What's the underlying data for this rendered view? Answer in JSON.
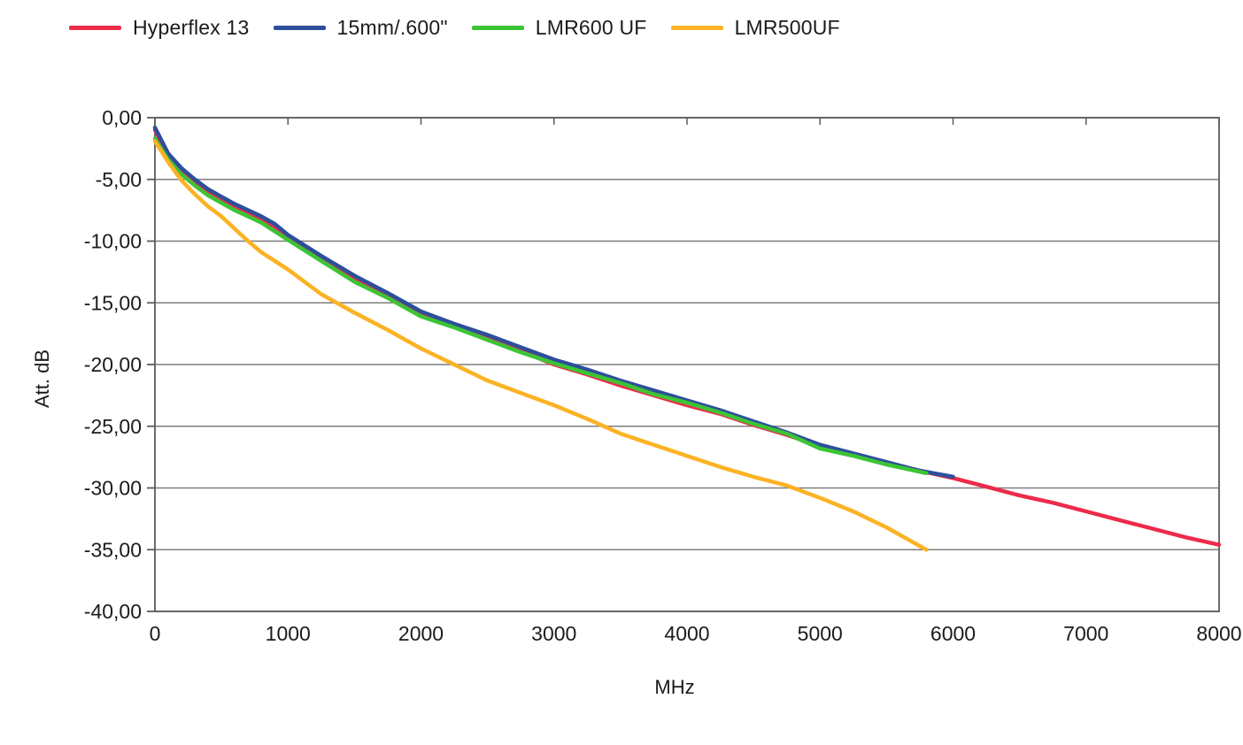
{
  "page": {
    "background": "#ffffff"
  },
  "colors": {
    "text": "#1b1b1b",
    "grid": "#7d7d7d",
    "axis": "#5c5c5c"
  },
  "legend": {
    "items": [
      {
        "label": "Hyperflex 13",
        "color": "#ec2b4b"
      },
      {
        "label": "15mm/.600\"",
        "color": "#2d4f9b"
      },
      {
        "label": "LMR600 UF",
        "color": "#3cc435"
      },
      {
        "label": "LMR500UF",
        "color": "#fbb224"
      }
    ]
  },
  "chart_data": {
    "type": "line",
    "title": "",
    "xlabel": "MHz",
    "ylabel": "Att. dB",
    "xlim": [
      0,
      8000
    ],
    "ylim": [
      -40,
      0
    ],
    "grid": "horizontal-major",
    "legend_position": "top-left",
    "x_ticks": [
      {
        "v": 0,
        "label": "0"
      },
      {
        "v": 1000,
        "label": "1000"
      },
      {
        "v": 2000,
        "label": "2000"
      },
      {
        "v": 3000,
        "label": "3000"
      },
      {
        "v": 4000,
        "label": "4000"
      },
      {
        "v": 5000,
        "label": "5000"
      },
      {
        "v": 6000,
        "label": "6000"
      },
      {
        "v": 7000,
        "label": "7000"
      },
      {
        "v": 8000,
        "label": "8000"
      }
    ],
    "y_ticks": [
      {
        "v": 0,
        "label": "0,00"
      },
      {
        "v": -5,
        "label": "-5,00"
      },
      {
        "v": -10,
        "label": "-10,00"
      },
      {
        "v": -15,
        "label": "-15,00"
      },
      {
        "v": -20,
        "label": "-20,00"
      },
      {
        "v": -25,
        "label": "-25,00"
      },
      {
        "v": -30,
        "label": "-30,00"
      },
      {
        "v": -35,
        "label": "-35,00"
      },
      {
        "v": -40,
        "label": "-40,00"
      }
    ],
    "series": [
      {
        "name": "Hyperflex 13",
        "color": "#ec2b4b",
        "x": [
          0,
          100,
          200,
          300,
          400,
          500,
          600,
          700,
          800,
          900,
          1000,
          1250,
          1500,
          1750,
          2000,
          2250,
          2500,
          2750,
          3000,
          3250,
          3500,
          3750,
          4000,
          4250,
          4500,
          4750,
          5000,
          5250,
          5500,
          5750,
          6000,
          6250,
          6500,
          6750,
          7000,
          7250,
          7500,
          7750,
          8000
        ],
        "y": [
          -1.0,
          -3.1,
          -4.3,
          -5.2,
          -6.0,
          -6.6,
          -7.2,
          -7.7,
          -8.3,
          -8.9,
          -9.7,
          -11.4,
          -13.0,
          -14.4,
          -15.9,
          -16.9,
          -17.9,
          -18.9,
          -20.0,
          -20.8,
          -21.7,
          -22.5,
          -23.3,
          -24.0,
          -24.9,
          -25.7,
          -26.6,
          -27.3,
          -28.0,
          -28.6,
          -29.2,
          -29.9,
          -30.6,
          -31.2,
          -31.9,
          -32.6,
          -33.3,
          -34.0,
          -34.6
        ]
      },
      {
        "name": "15mm/.600\"",
        "color": "#2d4f9b",
        "x": [
          0,
          100,
          200,
          300,
          400,
          500,
          600,
          700,
          800,
          900,
          1000,
          1250,
          1500,
          1750,
          2000,
          2250,
          2500,
          2750,
          3000,
          3250,
          3500,
          3750,
          4000,
          4250,
          4500,
          4750,
          5000,
          5250,
          5500,
          5750,
          6000
        ],
        "y": [
          -0.8,
          -2.9,
          -4.1,
          -5.0,
          -5.8,
          -6.4,
          -7.0,
          -7.5,
          -8.0,
          -8.6,
          -9.5,
          -11.2,
          -12.8,
          -14.2,
          -15.7,
          -16.7,
          -17.6,
          -18.6,
          -19.6,
          -20.4,
          -21.3,
          -22.1,
          -22.9,
          -23.7,
          -24.6,
          -25.5,
          -26.5,
          -27.2,
          -27.9,
          -28.6,
          -29.1
        ]
      },
      {
        "name": "LMR600 UF",
        "color": "#3cc435",
        "x": [
          0,
          100,
          200,
          300,
          400,
          500,
          600,
          700,
          800,
          900,
          1000,
          1250,
          1500,
          1750,
          2000,
          2250,
          2500,
          2750,
          3000,
          3250,
          3500,
          3750,
          4000,
          4250,
          4500,
          4750,
          5000,
          5250,
          5500,
          5800
        ],
        "y": [
          -1.7,
          -3.4,
          -4.6,
          -5.5,
          -6.3,
          -6.9,
          -7.5,
          -8.0,
          -8.5,
          -9.2,
          -9.9,
          -11.6,
          -13.3,
          -14.6,
          -16.1,
          -17.0,
          -18.0,
          -19.0,
          -19.9,
          -20.7,
          -21.5,
          -22.4,
          -23.1,
          -23.9,
          -24.8,
          -25.6,
          -26.8,
          -27.4,
          -28.1,
          -28.8
        ]
      },
      {
        "name": "LMR500UF",
        "color": "#fbb224",
        "x": [
          0,
          100,
          200,
          300,
          400,
          500,
          600,
          700,
          800,
          900,
          1000,
          1250,
          1500,
          1750,
          2000,
          2250,
          2500,
          2750,
          3000,
          3250,
          3500,
          3750,
          4000,
          4250,
          4500,
          4750,
          5000,
          5250,
          5500,
          5800
        ],
        "y": [
          -1.9,
          -3.6,
          -5.1,
          -6.2,
          -7.2,
          -8.0,
          -9.0,
          -10.0,
          -10.9,
          -11.6,
          -12.3,
          -14.3,
          -15.8,
          -17.2,
          -18.7,
          -20.0,
          -21.3,
          -22.3,
          -23.3,
          -24.4,
          -25.6,
          -26.5,
          -27.4,
          -28.3,
          -29.1,
          -29.8,
          -30.8,
          -31.9,
          -33.2,
          -35.0
        ]
      }
    ]
  }
}
